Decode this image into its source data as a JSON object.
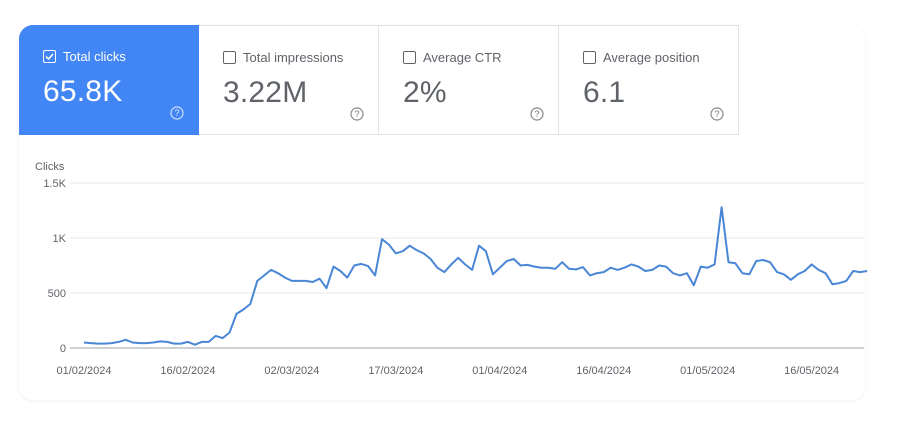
{
  "metrics": [
    {
      "label": "Total clicks",
      "value": "65.8K",
      "checked": true,
      "help_icon": "help-circle-icon"
    },
    {
      "label": "Total impressions",
      "value": "3.22M",
      "checked": false,
      "help_icon": "help-circle-icon"
    },
    {
      "label": "Average CTR",
      "value": "2%",
      "checked": false,
      "help_icon": "help-circle-icon"
    },
    {
      "label": "Average position",
      "value": "6.1",
      "checked": false,
      "help_icon": "help-circle-icon"
    }
  ],
  "colors": {
    "accent": "#4285f4",
    "line": "#4a86d6",
    "text_muted": "#5f6368",
    "grid": "#e8e8e8"
  },
  "chart_data": {
    "type": "line",
    "ylabel": "Clicks",
    "ylim": [
      0,
      1500
    ],
    "yticks": [
      0,
      500,
      1000,
      1500
    ],
    "ytick_labels": [
      "0",
      "500",
      "1K",
      "1.5K"
    ],
    "xlim": [
      "2024-02-01",
      "2024-05-25"
    ],
    "xticks": [
      "2024-02-01",
      "2024-02-16",
      "2024-03-02",
      "2024-03-17",
      "2024-04-01",
      "2024-04-16",
      "2024-05-01",
      "2024-05-16"
    ],
    "xtick_labels": [
      "01/02/2024",
      "16/02/2024",
      "02/03/2024",
      "17/03/2024",
      "01/04/2024",
      "16/04/2024",
      "01/05/2024",
      "16/05/2024"
    ],
    "grid": true,
    "series": [
      {
        "values": [
          [
            "2024-02-01",
            50
          ],
          [
            "2024-02-02",
            45
          ],
          [
            "2024-02-03",
            40
          ],
          [
            "2024-02-04",
            40
          ],
          [
            "2024-02-05",
            45
          ],
          [
            "2024-02-06",
            55
          ],
          [
            "2024-02-07",
            75
          ],
          [
            "2024-02-08",
            50
          ],
          [
            "2024-02-09",
            45
          ],
          [
            "2024-02-10",
            45
          ],
          [
            "2024-02-11",
            50
          ],
          [
            "2024-02-12",
            60
          ],
          [
            "2024-02-13",
            55
          ],
          [
            "2024-02-14",
            40
          ],
          [
            "2024-02-15",
            40
          ],
          [
            "2024-02-16",
            55
          ],
          [
            "2024-02-17",
            30
          ],
          [
            "2024-02-18",
            55
          ],
          [
            "2024-02-19",
            55
          ],
          [
            "2024-02-20",
            110
          ],
          [
            "2024-02-21",
            90
          ],
          [
            "2024-02-22",
            140
          ],
          [
            "2024-02-23",
            310
          ],
          [
            "2024-02-24",
            350
          ],
          [
            "2024-02-25",
            400
          ],
          [
            "2024-02-26",
            610
          ],
          [
            "2024-02-27",
            660
          ],
          [
            "2024-02-28",
            710
          ],
          [
            "2024-02-29",
            680
          ],
          [
            "2024-03-01",
            640
          ],
          [
            "2024-03-02",
            610
          ],
          [
            "2024-03-03",
            610
          ],
          [
            "2024-03-04",
            610
          ],
          [
            "2024-03-05",
            600
          ],
          [
            "2024-03-06",
            630
          ],
          [
            "2024-03-07",
            545
          ],
          [
            "2024-03-08",
            740
          ],
          [
            "2024-03-09",
            700
          ],
          [
            "2024-03-10",
            640
          ],
          [
            "2024-03-11",
            750
          ],
          [
            "2024-03-12",
            765
          ],
          [
            "2024-03-13",
            745
          ],
          [
            "2024-03-14",
            660
          ],
          [
            "2024-03-15",
            990
          ],
          [
            "2024-03-16",
            940
          ],
          [
            "2024-03-17",
            860
          ],
          [
            "2024-03-18",
            880
          ],
          [
            "2024-03-19",
            930
          ],
          [
            "2024-03-20",
            890
          ],
          [
            "2024-03-21",
            860
          ],
          [
            "2024-03-22",
            810
          ],
          [
            "2024-03-23",
            730
          ],
          [
            "2024-03-24",
            690
          ],
          [
            "2024-03-25",
            760
          ],
          [
            "2024-03-26",
            820
          ],
          [
            "2024-03-27",
            760
          ],
          [
            "2024-03-28",
            710
          ],
          [
            "2024-03-29",
            930
          ],
          [
            "2024-03-30",
            880
          ],
          [
            "2024-03-31",
            670
          ],
          [
            "2024-04-01",
            730
          ],
          [
            "2024-04-02",
            790
          ],
          [
            "2024-04-03",
            810
          ],
          [
            "2024-04-04",
            750
          ],
          [
            "2024-04-05",
            755
          ],
          [
            "2024-04-06",
            740
          ],
          [
            "2024-04-07",
            730
          ],
          [
            "2024-04-08",
            730
          ],
          [
            "2024-04-09",
            720
          ],
          [
            "2024-04-10",
            780
          ],
          [
            "2024-04-11",
            720
          ],
          [
            "2024-04-12",
            715
          ],
          [
            "2024-04-13",
            735
          ],
          [
            "2024-04-14",
            660
          ],
          [
            "2024-04-15",
            680
          ],
          [
            "2024-04-16",
            690
          ],
          [
            "2024-04-17",
            730
          ],
          [
            "2024-04-18",
            710
          ],
          [
            "2024-04-19",
            730
          ],
          [
            "2024-04-20",
            760
          ],
          [
            "2024-04-21",
            740
          ],
          [
            "2024-04-22",
            700
          ],
          [
            "2024-04-23",
            710
          ],
          [
            "2024-04-24",
            750
          ],
          [
            "2024-04-25",
            740
          ],
          [
            "2024-04-26",
            680
          ],
          [
            "2024-04-27",
            660
          ],
          [
            "2024-04-28",
            680
          ],
          [
            "2024-04-29",
            570
          ],
          [
            "2024-04-30",
            740
          ],
          [
            "2024-05-01",
            730
          ],
          [
            "2024-05-02",
            760
          ],
          [
            "2024-05-03",
            1280
          ],
          [
            "2024-05-04",
            780
          ],
          [
            "2024-05-05",
            770
          ],
          [
            "2024-05-06",
            680
          ],
          [
            "2024-05-07",
            670
          ],
          [
            "2024-05-08",
            790
          ],
          [
            "2024-05-09",
            800
          ],
          [
            "2024-05-10",
            780
          ],
          [
            "2024-05-11",
            690
          ],
          [
            "2024-05-12",
            670
          ],
          [
            "2024-05-13",
            620
          ],
          [
            "2024-05-14",
            670
          ],
          [
            "2024-05-15",
            700
          ],
          [
            "2024-05-16",
            760
          ],
          [
            "2024-05-17",
            710
          ],
          [
            "2024-05-18",
            680
          ],
          [
            "2024-05-19",
            580
          ],
          [
            "2024-05-20",
            590
          ],
          [
            "2024-05-21",
            610
          ],
          [
            "2024-05-22",
            700
          ],
          [
            "2024-05-23",
            690
          ],
          [
            "2024-05-24",
            700
          ]
        ]
      }
    ]
  }
}
